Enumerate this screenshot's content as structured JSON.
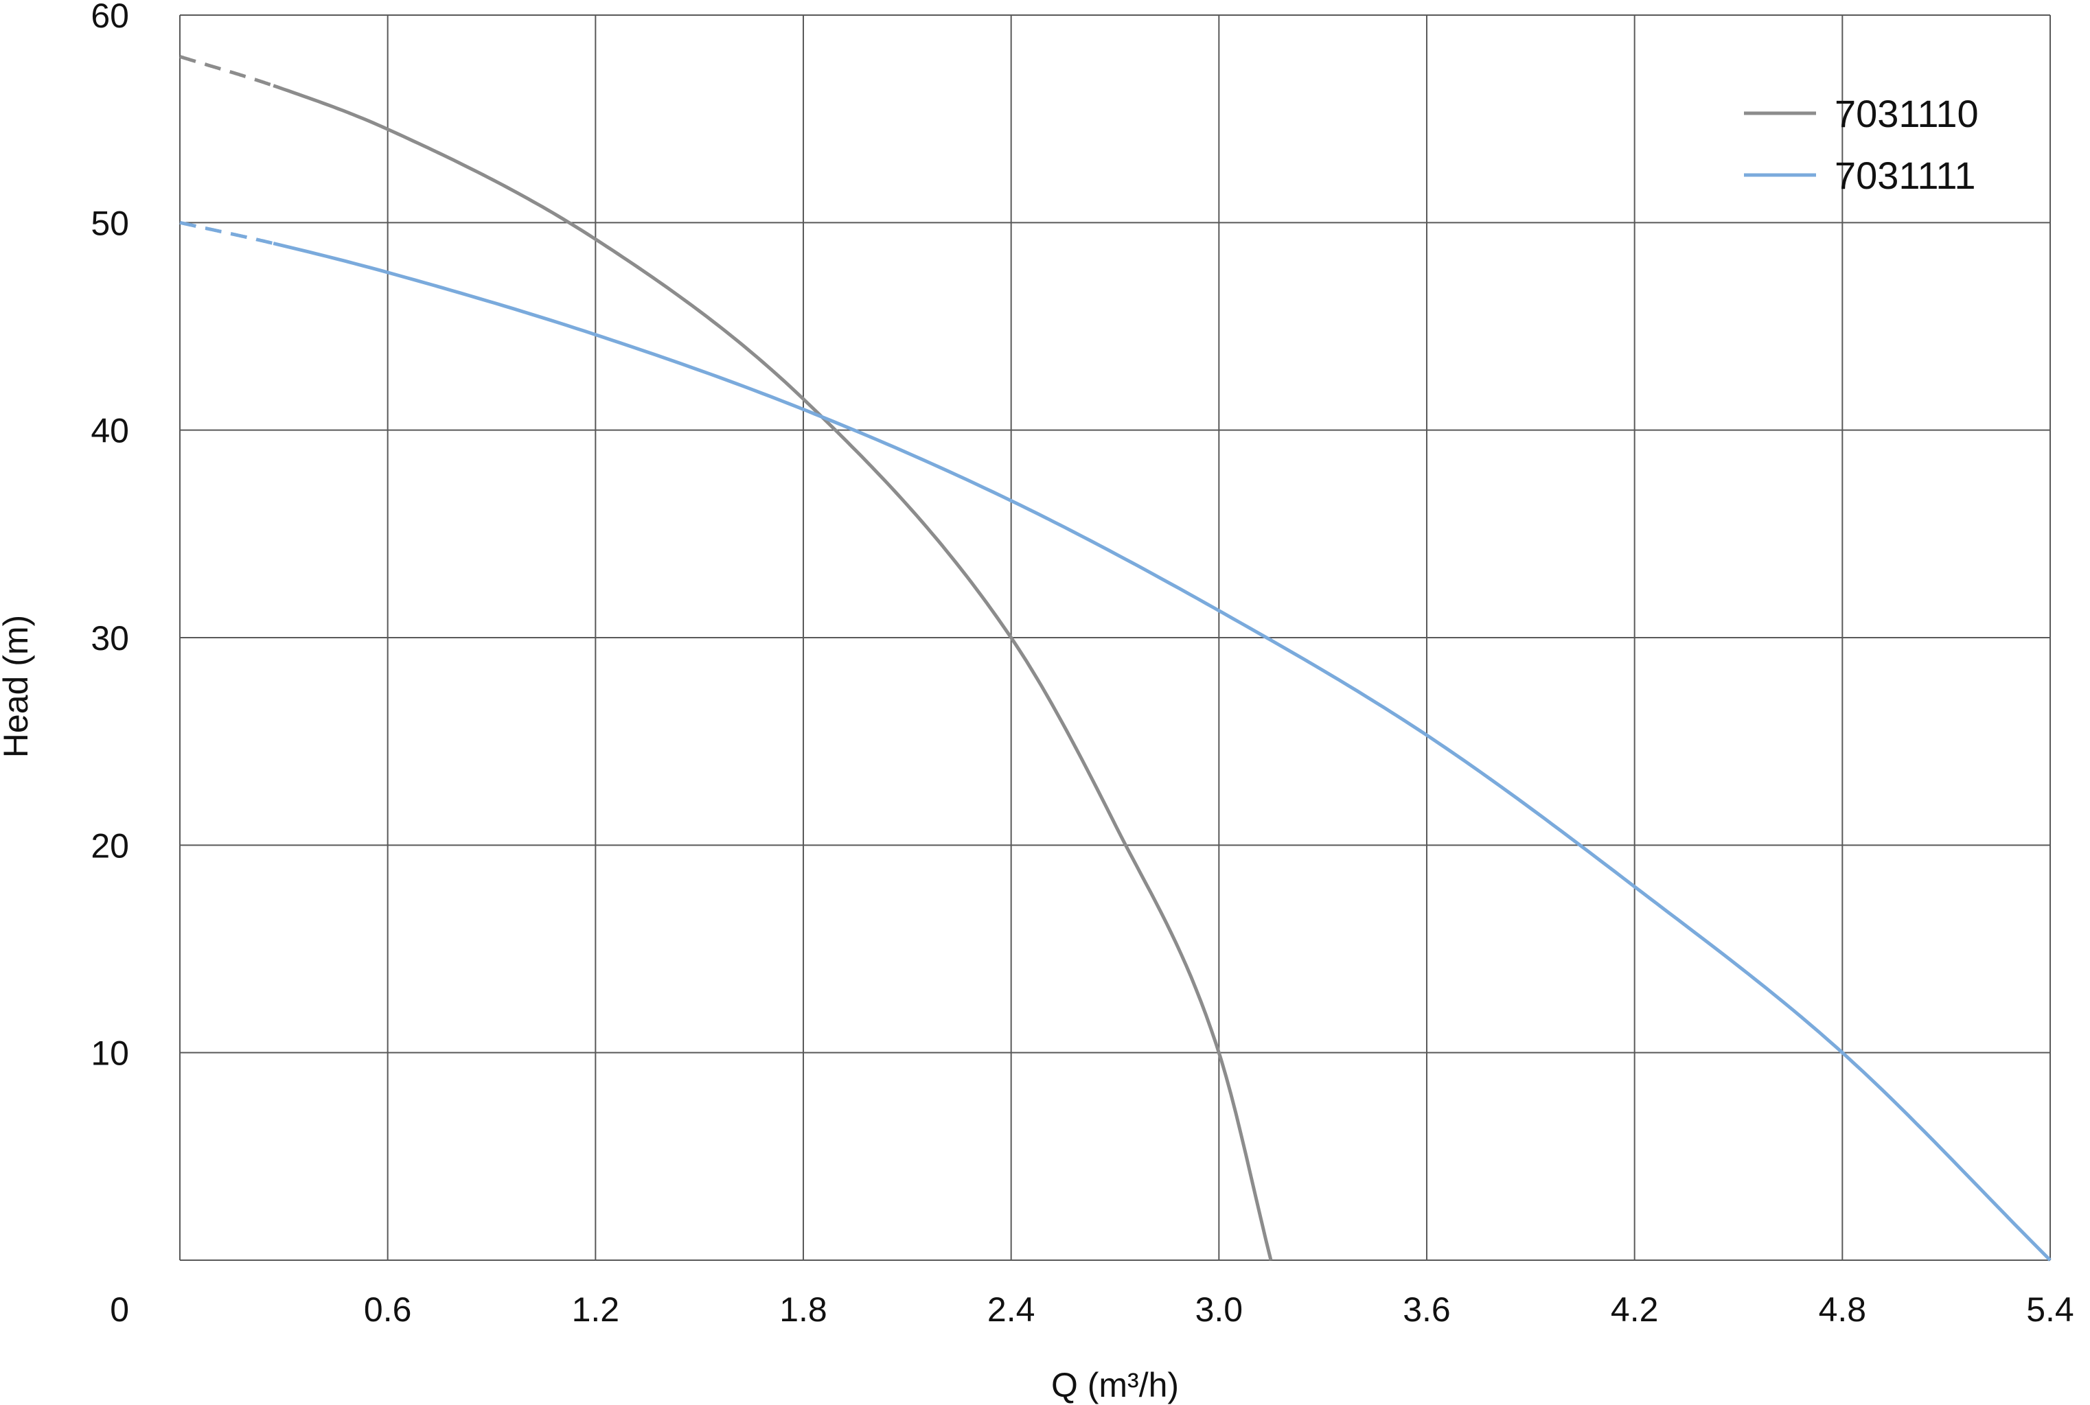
{
  "chart_data": {
    "type": "line",
    "xlabel": "Q (m³/h)",
    "ylabel": "Head (m)",
    "xlim": [
      0,
      5.4
    ],
    "ylim": [
      0,
      60
    ],
    "x_ticks": [
      0.6,
      1.2,
      1.8,
      2.4,
      3.0,
      3.6,
      4.2,
      4.8,
      5.4
    ],
    "x_tick_labels": [
      "0.6",
      "1.2",
      "1.8",
      "2.4",
      "3.0",
      "3.6",
      "4.2",
      "4.8",
      "5.4"
    ],
    "y_ticks": [
      0,
      10,
      20,
      30,
      40,
      50,
      60
    ],
    "y_tick_labels": [
      "0",
      "10",
      "20",
      "30",
      "40",
      "50",
      "60"
    ],
    "grid": true,
    "legend_position": "top-right",
    "series": [
      {
        "name": "7031110",
        "color": "#8c8c8c",
        "dashed_until_x": 0.27,
        "points": [
          [
            0,
            58
          ],
          [
            0.27,
            56.6
          ],
          [
            0.6,
            54.5
          ],
          [
            1.2,
            49.2
          ],
          [
            1.8,
            41.5
          ],
          [
            2.4,
            30.0
          ],
          [
            2.7,
            21.0
          ],
          [
            3.0,
            10.0
          ],
          [
            3.15,
            0
          ]
        ]
      },
      {
        "name": "7031111",
        "color": "#7aaadc",
        "dashed_until_x": 0.27,
        "points": [
          [
            0,
            50
          ],
          [
            0.27,
            49.0
          ],
          [
            0.6,
            47.6
          ],
          [
            1.2,
            44.6
          ],
          [
            1.8,
            41.0
          ],
          [
            2.4,
            36.6
          ],
          [
            3.0,
            31.3
          ],
          [
            3.6,
            25.3
          ],
          [
            4.2,
            18.0
          ],
          [
            4.8,
            10.0
          ],
          [
            5.4,
            0
          ]
        ]
      }
    ]
  }
}
